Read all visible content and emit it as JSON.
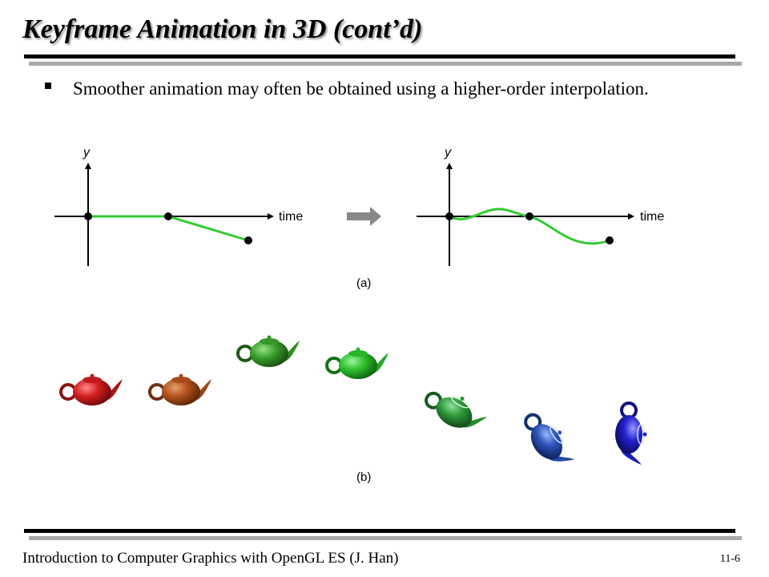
{
  "slide": {
    "title": "Keyframe Animation in 3D (cont’d)",
    "bullet": "Smoother animation may often be obtained using a higher-order interpolation."
  },
  "figure": {
    "graph_left": {
      "y_label": "y",
      "x_label": "time"
    },
    "graph_right": {
      "y_label": "y",
      "x_label": "time"
    },
    "caption_a": "(a)",
    "caption_b": "(b)",
    "colors": {
      "curve": "#33cc33",
      "arrow": "#888888",
      "teapots": [
        "#d42020",
        "#b5521c",
        "#3aa12a",
        "#2ec22e",
        "#2f9a3a",
        "#2a54b8",
        "#2222cc"
      ]
    }
  },
  "footer": {
    "course": "Introduction to Computer Graphics with OpenGL ES (J. Han)",
    "page": "11-6"
  }
}
